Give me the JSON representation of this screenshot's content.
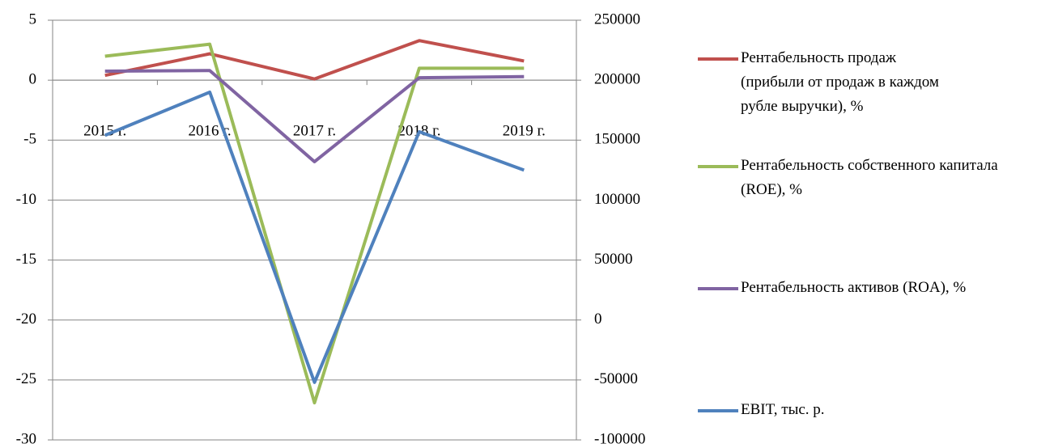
{
  "chart_data": {
    "type": "line",
    "categories": [
      "2015 г.",
      "2016 г.",
      "2017 г.",
      "2018 г.",
      "2019 г."
    ],
    "series": [
      {
        "name": "Рентабельность продаж (прибыли от продаж в каждом рубле выручки), %",
        "color": "#c0504d",
        "values": [
          0.4,
          2.2,
          0.1,
          3.3,
          1.6
        ]
      },
      {
        "name": "Рентабельность собственного капитала (ROE), %",
        "color": "#9bbb59",
        "values": [
          2.0,
          3.0,
          -26.9,
          1.0,
          1.0
        ]
      },
      {
        "name": "Рентабельность активов (ROA), %",
        "color": "#8064a2",
        "values": [
          0.75,
          0.8,
          -6.8,
          0.2,
          0.3
        ]
      },
      {
        "name": "EBIT, тыс. р.",
        "color": "#4f81bd",
        "axis": "y2",
        "values": [
          154000,
          190000,
          -52000,
          157000,
          125000
        ]
      }
    ],
    "ylim": [
      -30,
      5
    ],
    "yticks": [
      -30,
      -25,
      -20,
      -15,
      -10,
      -5,
      0,
      5
    ],
    "y2lim": [
      -100000,
      250000
    ],
    "y2ticks": [
      -100000,
      -50000,
      0,
      50000,
      100000,
      150000,
      200000,
      250000
    ],
    "grid": true,
    "legend": "right"
  }
}
